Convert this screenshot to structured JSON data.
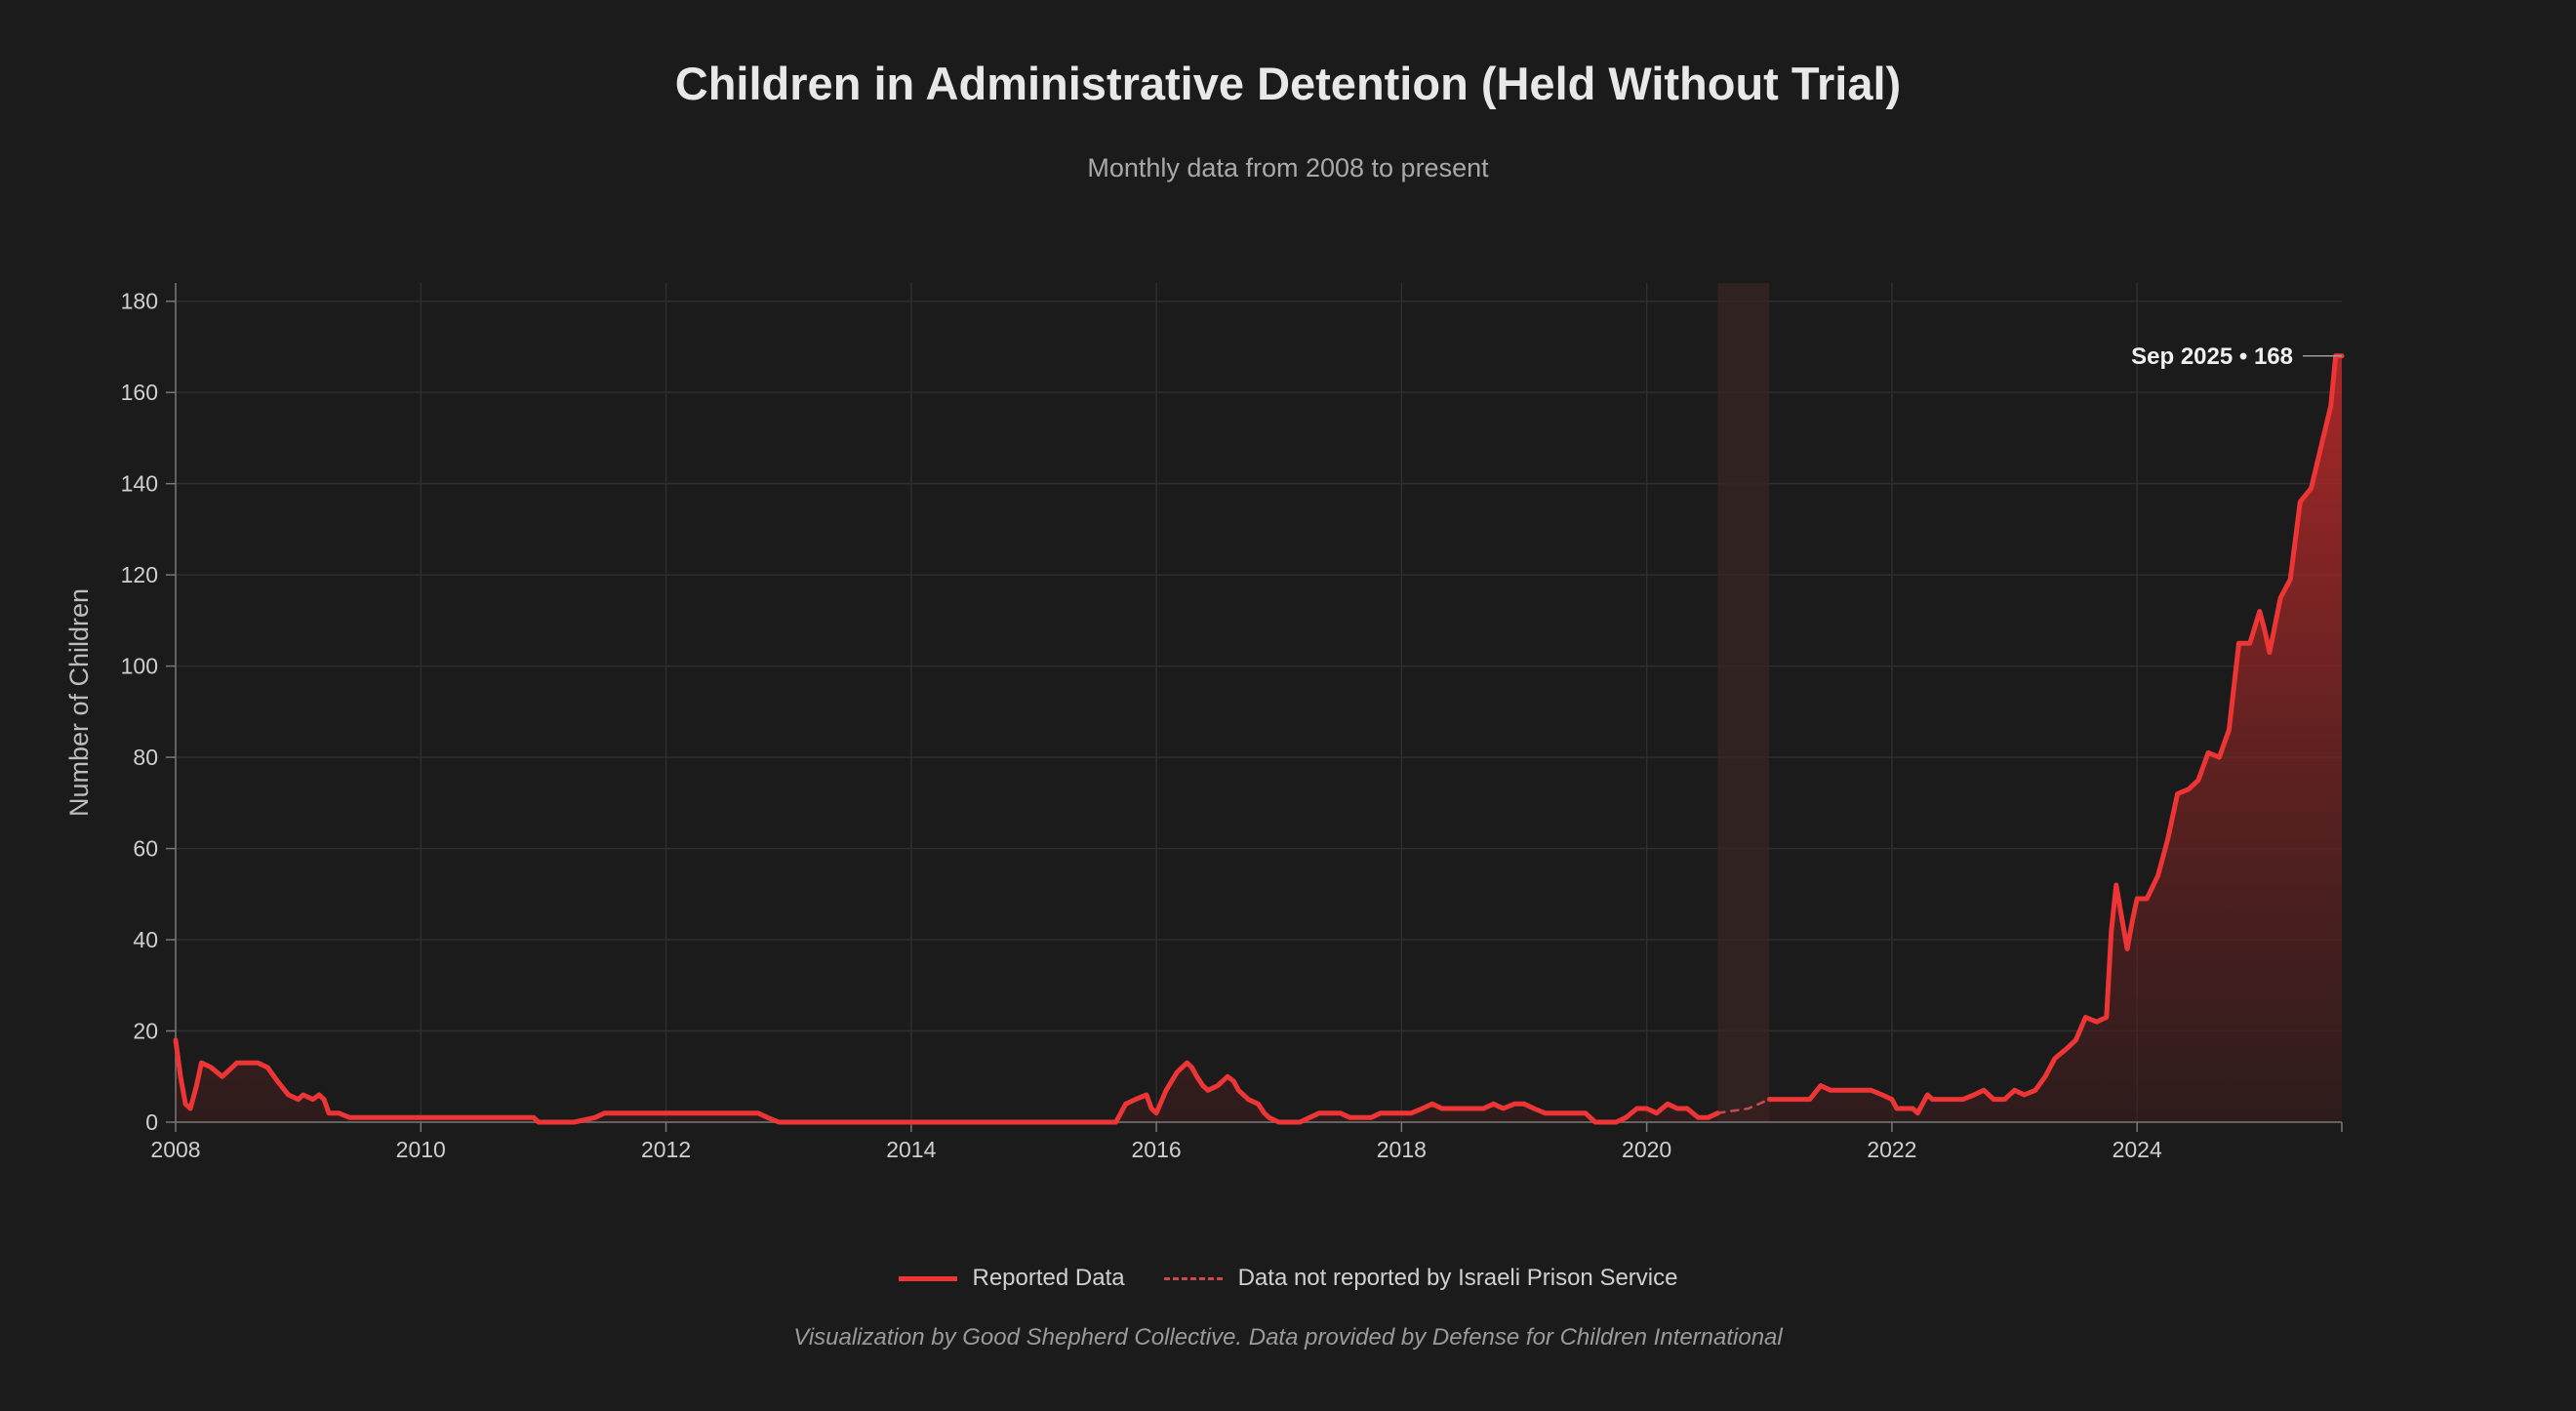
{
  "header": {
    "title": "Children in Administrative Detention (Held Without Trial)",
    "subtitle": "Monthly data from 2008 to present"
  },
  "legend": {
    "reported": "Reported Data",
    "not_reported": "Data not reported by Israeli Prison Service"
  },
  "caption": "Visualization by Good Shepherd Collective. Data provided by Defense for Children International",
  "colors": {
    "background": "#1b1b1b",
    "line": "#ee3535",
    "grid": "#2e2e2e",
    "axis_text": "#cfcfcf",
    "gap_band": "#3a2626"
  },
  "chart_data": {
    "type": "area",
    "title": "Children in Administrative Detention (Held Without Trial)",
    "xlabel": "",
    "ylabel": "Number of Children",
    "xlim": [
      2008.0,
      2025.67
    ],
    "ylim": [
      0,
      184
    ],
    "x_ticks": [
      2008,
      2010,
      2012,
      2014,
      2016,
      2018,
      2020,
      2022,
      2024
    ],
    "y_ticks": [
      0,
      20,
      40,
      60,
      80,
      100,
      120,
      140,
      160,
      180
    ],
    "grid": true,
    "legend_position": "bottom-center",
    "annotation": {
      "label": "Sep 2025 • 168",
      "x": 2025.67,
      "y": 168
    },
    "unreported_band": [
      2020.58,
      2021.0
    ],
    "series": [
      {
        "name": "Reported Data",
        "style": "solid",
        "points": [
          [
            2008.0,
            18
          ],
          [
            2008.04,
            10
          ],
          [
            2008.08,
            4
          ],
          [
            2008.12,
            3
          ],
          [
            2008.17,
            8
          ],
          [
            2008.21,
            13
          ],
          [
            2008.29,
            12
          ],
          [
            2008.38,
            10
          ],
          [
            2008.42,
            11
          ],
          [
            2008.5,
            13
          ],
          [
            2008.58,
            13
          ],
          [
            2008.67,
            13
          ],
          [
            2008.75,
            12
          ],
          [
            2008.83,
            9
          ],
          [
            2008.92,
            6
          ],
          [
            2009.0,
            5
          ],
          [
            2009.04,
            6
          ],
          [
            2009.12,
            5
          ],
          [
            2009.17,
            6
          ],
          [
            2009.21,
            5
          ],
          [
            2009.25,
            2
          ],
          [
            2009.33,
            2
          ],
          [
            2009.42,
            1
          ],
          [
            2009.5,
            1
          ],
          [
            2009.75,
            1
          ],
          [
            2010.0,
            1
          ],
          [
            2010.25,
            1
          ],
          [
            2010.5,
            1
          ],
          [
            2010.75,
            1
          ],
          [
            2010.83,
            1
          ],
          [
            2010.92,
            1
          ],
          [
            2010.96,
            0
          ],
          [
            2011.0,
            0
          ],
          [
            2011.25,
            0
          ],
          [
            2011.42,
            1
          ],
          [
            2011.5,
            2
          ],
          [
            2011.75,
            2
          ],
          [
            2012.0,
            2
          ],
          [
            2012.25,
            2
          ],
          [
            2012.5,
            2
          ],
          [
            2012.75,
            2
          ],
          [
            2012.83,
            1
          ],
          [
            2012.92,
            0
          ],
          [
            2013.0,
            0
          ],
          [
            2013.5,
            0
          ],
          [
            2014.0,
            0
          ],
          [
            2014.5,
            0
          ],
          [
            2015.0,
            0
          ],
          [
            2015.5,
            0
          ],
          [
            2015.67,
            0
          ],
          [
            2015.75,
            4
          ],
          [
            2015.83,
            5
          ],
          [
            2015.92,
            6
          ],
          [
            2015.96,
            3
          ],
          [
            2016.0,
            2
          ],
          [
            2016.08,
            7
          ],
          [
            2016.17,
            11
          ],
          [
            2016.25,
            13
          ],
          [
            2016.29,
            12
          ],
          [
            2016.33,
            10
          ],
          [
            2016.38,
            8
          ],
          [
            2016.42,
            7
          ],
          [
            2016.5,
            8
          ],
          [
            2016.58,
            10
          ],
          [
            2016.63,
            9
          ],
          [
            2016.67,
            7
          ],
          [
            2016.75,
            5
          ],
          [
            2016.83,
            4
          ],
          [
            2016.88,
            2
          ],
          [
            2016.92,
            1
          ],
          [
            2017.0,
            0
          ],
          [
            2017.08,
            0
          ],
          [
            2017.17,
            0
          ],
          [
            2017.25,
            1
          ],
          [
            2017.33,
            2
          ],
          [
            2017.42,
            2
          ],
          [
            2017.5,
            2
          ],
          [
            2017.58,
            1
          ],
          [
            2017.67,
            1
          ],
          [
            2017.75,
            1
          ],
          [
            2017.83,
            2
          ],
          [
            2017.92,
            2
          ],
          [
            2018.0,
            2
          ],
          [
            2018.08,
            2
          ],
          [
            2018.17,
            3
          ],
          [
            2018.25,
            4
          ],
          [
            2018.33,
            3
          ],
          [
            2018.42,
            3
          ],
          [
            2018.5,
            3
          ],
          [
            2018.58,
            3
          ],
          [
            2018.67,
            3
          ],
          [
            2018.75,
            4
          ],
          [
            2018.83,
            3
          ],
          [
            2018.92,
            4
          ],
          [
            2019.0,
            4
          ],
          [
            2019.08,
            3
          ],
          [
            2019.17,
            2
          ],
          [
            2019.25,
            2
          ],
          [
            2019.33,
            2
          ],
          [
            2019.42,
            2
          ],
          [
            2019.5,
            2
          ],
          [
            2019.58,
            0
          ],
          [
            2019.67,
            0
          ],
          [
            2019.75,
            0
          ],
          [
            2019.83,
            1
          ],
          [
            2019.92,
            3
          ],
          [
            2020.0,
            3
          ],
          [
            2020.08,
            2
          ],
          [
            2020.17,
            4
          ],
          [
            2020.25,
            3
          ],
          [
            2020.33,
            3
          ],
          [
            2020.42,
            1
          ],
          [
            2020.5,
            1
          ],
          [
            2020.58,
            2
          ]
        ]
      },
      {
        "name": "Data not reported by Israeli Prison Service",
        "style": "dashed",
        "points": [
          [
            2020.58,
            2
          ],
          [
            2020.83,
            3
          ],
          [
            2021.0,
            5
          ]
        ]
      },
      {
        "name": "Reported Data (continued)",
        "style": "solid",
        "points": [
          [
            2021.0,
            5
          ],
          [
            2021.08,
            5
          ],
          [
            2021.17,
            5
          ],
          [
            2021.25,
            5
          ],
          [
            2021.33,
            5
          ],
          [
            2021.42,
            8
          ],
          [
            2021.5,
            7
          ],
          [
            2021.58,
            7
          ],
          [
            2021.67,
            7
          ],
          [
            2021.75,
            7
          ],
          [
            2021.83,
            7
          ],
          [
            2021.92,
            6
          ],
          [
            2022.0,
            5
          ],
          [
            2022.04,
            3
          ],
          [
            2022.08,
            3
          ],
          [
            2022.17,
            3
          ],
          [
            2022.21,
            2
          ],
          [
            2022.25,
            4
          ],
          [
            2022.29,
            6
          ],
          [
            2022.33,
            5
          ],
          [
            2022.42,
            5
          ],
          [
            2022.5,
            5
          ],
          [
            2022.58,
            5
          ],
          [
            2022.67,
            6
          ],
          [
            2022.75,
            7
          ],
          [
            2022.83,
            5
          ],
          [
            2022.92,
            5
          ],
          [
            2023.0,
            7
          ],
          [
            2023.08,
            6
          ],
          [
            2023.17,
            7
          ],
          [
            2023.25,
            10
          ],
          [
            2023.33,
            14
          ],
          [
            2023.42,
            16
          ],
          [
            2023.5,
            18
          ],
          [
            2023.58,
            23
          ],
          [
            2023.67,
            22
          ],
          [
            2023.75,
            23
          ],
          [
            2023.79,
            42
          ],
          [
            2023.83,
            52
          ],
          [
            2023.88,
            44
          ],
          [
            2023.92,
            38
          ],
          [
            2023.96,
            44
          ],
          [
            2024.0,
            49
          ],
          [
            2024.08,
            49
          ],
          [
            2024.17,
            54
          ],
          [
            2024.25,
            62
          ],
          [
            2024.33,
            72
          ],
          [
            2024.42,
            73
          ],
          [
            2024.5,
            75
          ],
          [
            2024.58,
            81
          ],
          [
            2024.67,
            80
          ],
          [
            2024.75,
            86
          ],
          [
            2024.83,
            105
          ],
          [
            2024.92,
            105
          ],
          [
            2025.0,
            112
          ],
          [
            2025.04,
            108
          ],
          [
            2025.08,
            103
          ],
          [
            2025.17,
            115
          ],
          [
            2025.25,
            119
          ],
          [
            2025.33,
            136
          ],
          [
            2025.42,
            139
          ],
          [
            2025.5,
            148
          ],
          [
            2025.58,
            157
          ],
          [
            2025.62,
            168
          ],
          [
            2025.67,
            168
          ]
        ]
      }
    ]
  }
}
